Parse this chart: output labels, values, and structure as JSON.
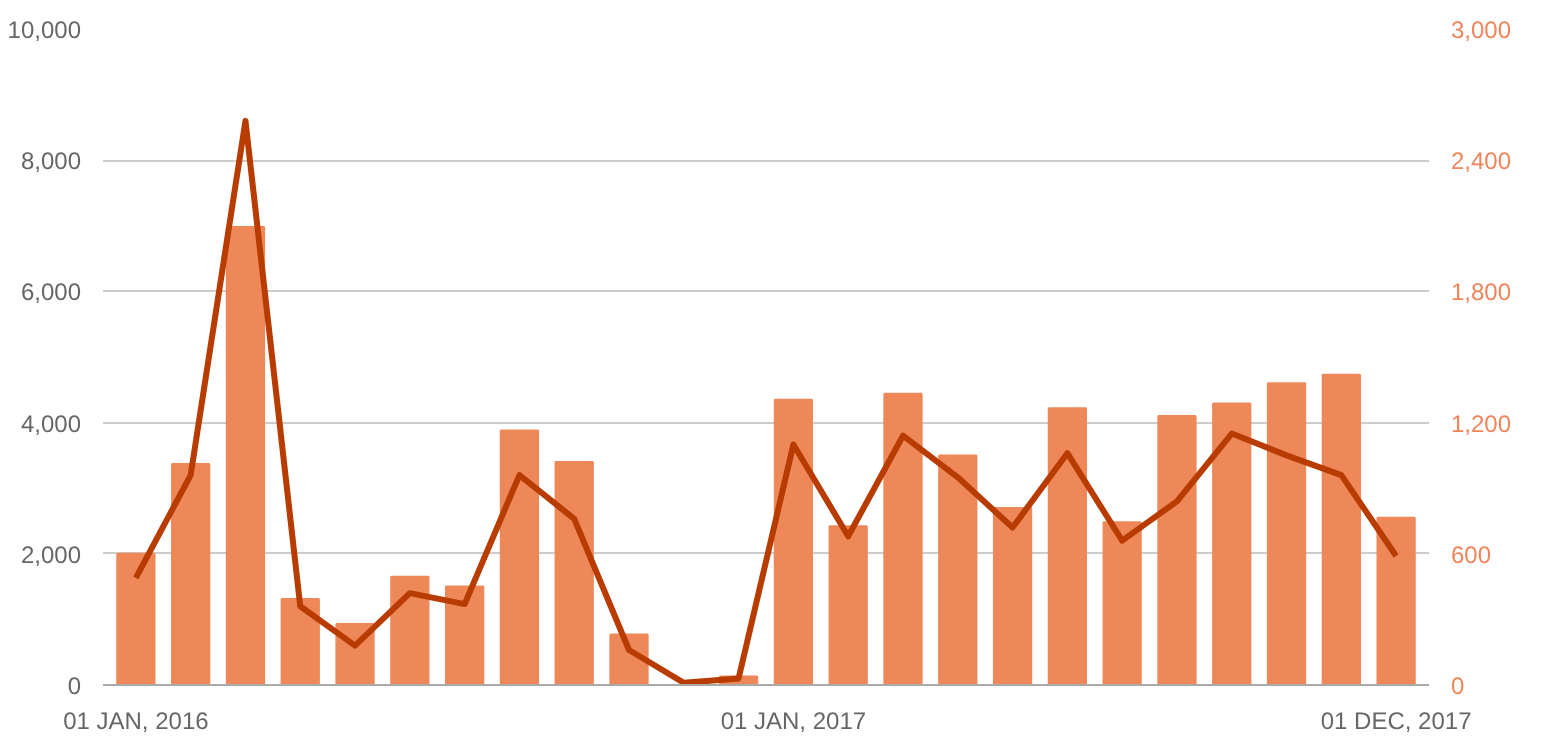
{
  "chart_data": {
    "type": "bar",
    "categories": [
      "01 JAN, 2016",
      null,
      null,
      null,
      null,
      null,
      null,
      null,
      null,
      null,
      null,
      null,
      "01 JAN, 2017",
      null,
      null,
      null,
      null,
      null,
      null,
      null,
      null,
      null,
      null,
      "01 DEC, 2017"
    ],
    "series": [
      {
        "color": "#ee8859",
        "values": [
          2000,
          3370,
          6980,
          1310,
          930,
          1650,
          1500,
          3880,
          3400,
          770,
          null,
          130,
          4350,
          2420,
          4440,
          3500,
          2700,
          4220,
          2480,
          4100,
          4290,
          4600,
          4730,
          2550
        ]
      },
      {
        "type": "line",
        "axis": "y2",
        "color": "#b83c00",
        "values": [
          490,
          960,
          2580,
          360,
          180,
          420,
          370,
          960,
          760,
          160,
          10,
          30,
          1100,
          680,
          1140,
          950,
          720,
          1060,
          660,
          840,
          1150,
          1050,
          960,
          590
        ]
      }
    ],
    "ylim": [
      0,
      10000
    ],
    "yticks": [
      0,
      {
        "value": 2000,
        "label": "2,000"
      },
      {
        "value": 4000,
        "label": "4,000"
      },
      {
        "value": 6000,
        "label": "6,000"
      },
      {
        "value": 8000,
        "label": "8,000"
      },
      {
        "value": 10000,
        "label": "10,000"
      }
    ],
    "y2lim": [
      0,
      3000
    ],
    "y2ticks": [
      0,
      600,
      {
        "value": 1200,
        "label": "1,200"
      },
      {
        "value": 1800,
        "label": "1,800"
      },
      {
        "value": 2400,
        "label": "2,400"
      },
      {
        "value": 3000,
        "label": "3,000"
      }
    ],
    "grid": "y",
    "marker": "none",
    "line_style": "solid"
  }
}
